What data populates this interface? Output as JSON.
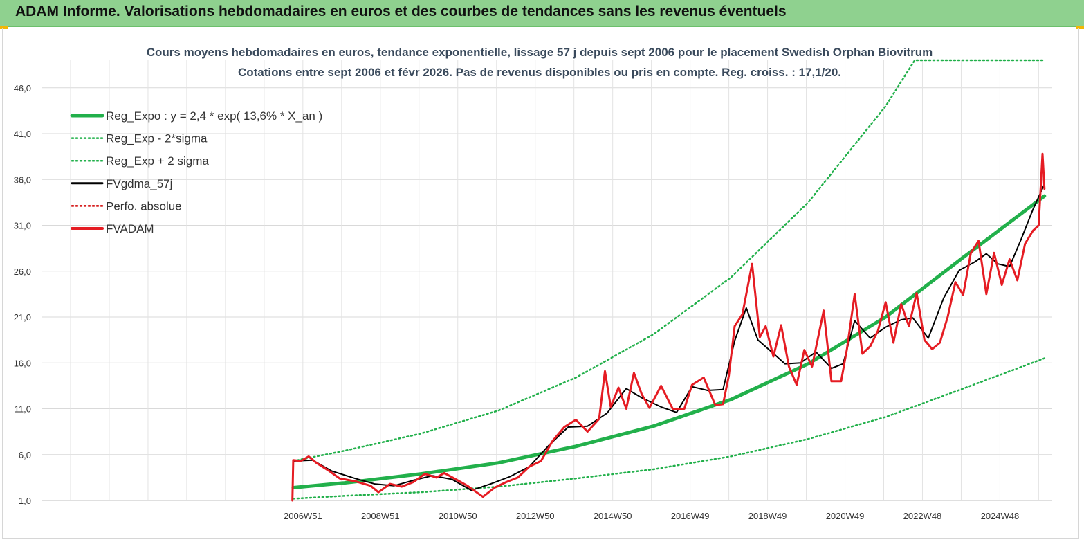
{
  "header": {
    "title": "ADAM Informe. Valorisations hebdomadaires en euros et des courbes de tendances sans les revenus éventuels"
  },
  "chart_data": {
    "type": "line",
    "title": "Cours moyens hebdomadaires en euros, tendance exponentielle, lissage 57 j depuis sept 2006 pour le placement Swedish Orphan Biovitrum",
    "subtitle": "Cotations entre sept 2006 et févr 2026. Pas de revenus disponibles ou pris en compte. Reg. croiss. : 17,1/20.",
    "xlabel": "",
    "ylabel": "",
    "ylim": [
      1.0,
      49.0
    ],
    "yticks": [
      "1,0",
      "6,0",
      "11,0",
      "16,0",
      "21,0",
      "26,0",
      "31,0",
      "36,0",
      "41,0",
      "46,0"
    ],
    "xlim": [
      2000.2,
      2026.3
    ],
    "xticks": [
      {
        "x": 2006.95,
        "label": "2006W51"
      },
      {
        "x": 2008.95,
        "label": "2008W51"
      },
      {
        "x": 2010.95,
        "label": "2010W50"
      },
      {
        "x": 2012.95,
        "label": "2012W50"
      },
      {
        "x": 2014.95,
        "label": "2014W50"
      },
      {
        "x": 2016.95,
        "label": "2016W49"
      },
      {
        "x": 2018.95,
        "label": "2018W49"
      },
      {
        "x": 2020.95,
        "label": "2020W49"
      },
      {
        "x": 2022.95,
        "label": "2022W48"
      },
      {
        "x": 2024.95,
        "label": "2024W48"
      }
    ],
    "grid": true,
    "legend_position": "top-left",
    "series": [
      {
        "name": "Reg_Expo : y = 2,4 * exp( 13,6% *  X_an )",
        "style": "solid-thick",
        "color": "#22b04b",
        "x": [
          2006.7,
          2008,
          2010,
          2012,
          2014,
          2016,
          2018,
          2020,
          2022,
          2024,
          2026.1
        ],
        "y": [
          2.4,
          2.9,
          3.9,
          5.1,
          6.9,
          9.1,
          12.0,
          15.9,
          21.0,
          27.5,
          34.2
        ]
      },
      {
        "name": "Reg_Exp - 2*sigma",
        "style": "dotted",
        "color": "#22b04b",
        "x": [
          2006.7,
          2008,
          2010,
          2012,
          2014,
          2016,
          2018,
          2020,
          2022,
          2024,
          2026.1
        ],
        "y": [
          1.2,
          1.5,
          1.9,
          2.5,
          3.4,
          4.4,
          5.8,
          7.7,
          10.1,
          13.2,
          16.5
        ]
      },
      {
        "name": "Reg_Exp + 2 sigma",
        "style": "dotted",
        "color": "#22b04b",
        "x": [
          2006.7,
          2008,
          2010,
          2012,
          2014,
          2016,
          2018,
          2020,
          2022,
          2022.75,
          2026.1
        ],
        "y": [
          5.3,
          6.4,
          8.3,
          10.8,
          14.4,
          19.1,
          25.3,
          33.5,
          44.0,
          49.0,
          49.0
        ]
      },
      {
        "name": "FVgdma_57j",
        "style": "solid",
        "color": "#000000",
        "x": [
          2006.7,
          2007.2,
          2007.7,
          2008.3,
          2008.8,
          2009.3,
          2009.8,
          2010.3,
          2010.8,
          2011.3,
          2011.8,
          2012.3,
          2012.8,
          2013.3,
          2013.8,
          2014.3,
          2014.8,
          2015.3,
          2015.7,
          2016.2,
          2016.6,
          2017.0,
          2017.4,
          2017.8,
          2018.1,
          2018.4,
          2018.7,
          2019.0,
          2019.4,
          2019.8,
          2020.2,
          2020.6,
          2020.9,
          2021.2,
          2021.6,
          2022.0,
          2022.4,
          2022.7,
          2023.1,
          2023.5,
          2023.9,
          2024.3,
          2024.6,
          2024.9,
          2025.2,
          2025.5,
          2025.8,
          2026.1
        ],
        "y": [
          5.3,
          5.4,
          4.2,
          3.4,
          2.8,
          2.6,
          3.2,
          3.7,
          3.3,
          2.1,
          2.8,
          3.6,
          4.7,
          7.0,
          9.0,
          9.1,
          10.5,
          13.2,
          12.2,
          11.2,
          10.6,
          13.4,
          13.0,
          13.1,
          18.4,
          22.0,
          18.5,
          17.4,
          15.9,
          16.0,
          17.2,
          15.4,
          15.9,
          20.6,
          18.7,
          19.9,
          20.7,
          20.9,
          18.7,
          23.1,
          26.1,
          27.0,
          27.9,
          26.8,
          26.5,
          29.5,
          32.7,
          35.5
        ]
      },
      {
        "name": "Perfo. absolue",
        "style": "dotted",
        "color": "#d00000",
        "x": [],
        "y": []
      },
      {
        "name": "FVADAM",
        "style": "solid-thick",
        "color": "#e51c23",
        "x": [
          2006.68,
          2006.7,
          2006.9,
          2007.1,
          2007.3,
          2007.6,
          2007.9,
          2008.3,
          2008.7,
          2008.9,
          2009.2,
          2009.5,
          2009.8,
          2010.1,
          2010.4,
          2010.6,
          2010.9,
          2011.2,
          2011.6,
          2011.9,
          2012.2,
          2012.5,
          2012.8,
          2013.1,
          2013.4,
          2013.7,
          2014.0,
          2014.3,
          2014.6,
          2014.75,
          2014.9,
          2015.1,
          2015.3,
          2015.5,
          2015.7,
          2015.9,
          2016.2,
          2016.5,
          2016.8,
          2017.0,
          2017.3,
          2017.6,
          2017.8,
          2017.95,
          2018.1,
          2018.3,
          2018.55,
          2018.75,
          2018.9,
          2019.1,
          2019.3,
          2019.5,
          2019.7,
          2019.9,
          2020.1,
          2020.4,
          2020.6,
          2020.85,
          2021.0,
          2021.2,
          2021.4,
          2021.6,
          2021.8,
          2022.0,
          2022.2,
          2022.4,
          2022.6,
          2022.8,
          2023.0,
          2023.2,
          2023.4,
          2023.6,
          2023.8,
          2024.0,
          2024.2,
          2024.4,
          2024.6,
          2024.8,
          2025.0,
          2025.2,
          2025.4,
          2025.6,
          2025.8,
          2025.95,
          2026.05,
          2026.1
        ],
        "y": [
          1.0,
          5.4,
          5.3,
          5.8,
          5.1,
          4.3,
          3.4,
          3.1,
          2.6,
          1.9,
          2.8,
          2.5,
          3.0,
          3.9,
          3.5,
          4.0,
          3.3,
          2.6,
          1.4,
          2.4,
          3.0,
          3.5,
          4.7,
          5.3,
          7.5,
          9.0,
          9.8,
          8.5,
          9.9,
          15.1,
          11.2,
          13.3,
          11.0,
          14.9,
          12.6,
          11.1,
          13.5,
          11.0,
          11.0,
          13.6,
          14.4,
          11.4,
          11.5,
          14.6,
          20.0,
          21.3,
          26.8,
          18.8,
          20.0,
          16.7,
          20.1,
          15.6,
          13.6,
          17.4,
          15.6,
          21.7,
          14.0,
          14.0,
          17.5,
          23.5,
          17.0,
          17.8,
          19.5,
          22.6,
          18.2,
          22.4,
          20.0,
          23.6,
          18.5,
          17.5,
          18.2,
          21.0,
          24.8,
          23.4,
          28.0,
          29.3,
          23.5,
          28.0,
          24.5,
          27.3,
          25.0,
          29.0,
          30.4,
          31.0,
          38.8,
          35.0
        ]
      }
    ]
  }
}
